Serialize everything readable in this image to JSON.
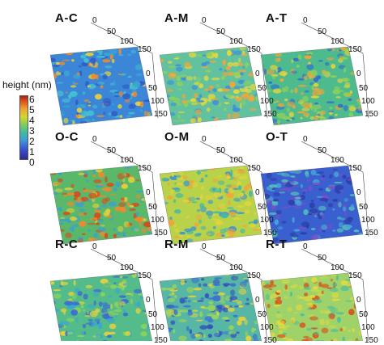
{
  "colorbar": {
    "title": "height (nm)",
    "labels": [
      "6",
      "5",
      "4",
      "3",
      "2",
      "1",
      "0"
    ]
  },
  "panels": [
    {
      "id": "A-C",
      "label": "A-C",
      "ticks": [
        "0",
        "50",
        "100",
        "150",
        "0",
        "50",
        "100",
        "150"
      ]
    },
    {
      "id": "A-M",
      "label": "A-M",
      "ticks": [
        "0",
        "50",
        "100",
        "150",
        "0",
        "50",
        "100",
        "150"
      ]
    },
    {
      "id": "A-T",
      "label": "A-T",
      "ticks": [
        "0",
        "50",
        "100",
        "150",
        "0",
        "50",
        "100",
        "150"
      ]
    },
    {
      "id": "O-C",
      "label": "O-C",
      "ticks": [
        "0",
        "50",
        "100",
        "150",
        "0",
        "50",
        "100",
        "150"
      ]
    },
    {
      "id": "O-M",
      "label": "O-M",
      "ticks": [
        "0",
        "50",
        "100",
        "150",
        "0",
        "50",
        "100",
        "150"
      ]
    },
    {
      "id": "O-T",
      "label": "O-T",
      "ticks": [
        "0",
        "50",
        "100",
        "150",
        "0",
        "50",
        "100",
        "150"
      ]
    },
    {
      "id": "R-C",
      "label": "R-C",
      "ticks": [
        "0",
        "50",
        "100",
        "150",
        "0",
        "50",
        "100",
        "150"
      ]
    },
    {
      "id": "R-M",
      "label": "R-M",
      "ticks": [
        "0",
        "50",
        "100",
        "150",
        "0",
        "50",
        "100",
        "150"
      ]
    },
    {
      "id": "R-T",
      "label": "R-T",
      "ticks": [
        "0",
        "50",
        "100",
        "150",
        "0",
        "50",
        "100",
        "150"
      ]
    }
  ],
  "colors": {
    "low": "#2b2b8f",
    "mid": "#3fb9a5",
    "high": "#b21b12"
  }
}
